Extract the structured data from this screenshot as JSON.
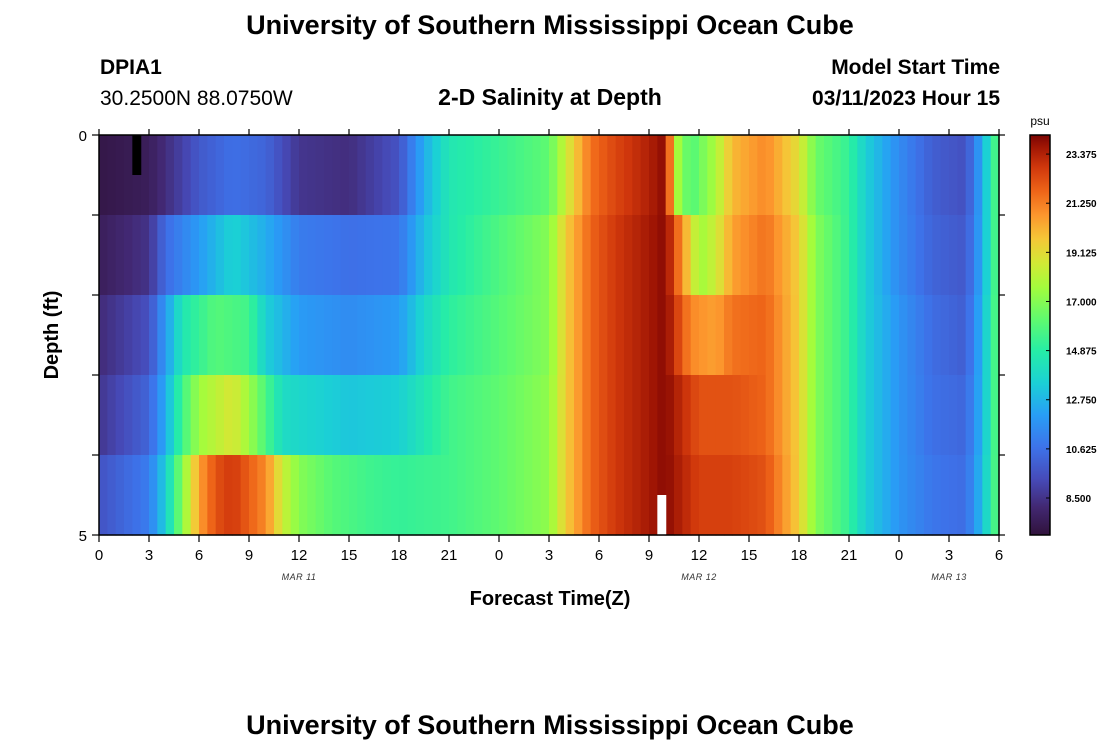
{
  "header": {
    "title": "University of Southern Mississippi Ocean Cube",
    "station_id": "DPIA1",
    "coordinates": "30.2500N  88.0750W",
    "plot_title": "2-D Salinity at Depth",
    "model_label": "Model Start Time",
    "model_time": "03/11/2023 Hour 15"
  },
  "footer": {
    "title": "University of Southern Mississippi Ocean Cube"
  },
  "chart_data": {
    "type": "heatmap",
    "title": "2-D Salinity at Depth",
    "xlabel": "Forecast Time(Z)",
    "ylabel": "Depth (ft)",
    "x_hours": [
      0,
      54
    ],
    "x_tick_labels": [
      "0",
      "3",
      "6",
      "9",
      "12",
      "15",
      "18",
      "21",
      "0",
      "3",
      "6",
      "9",
      "12",
      "15",
      "18",
      "21",
      "0",
      "3",
      "6"
    ],
    "date_labels": [
      {
        "label": "MAR 11",
        "hour": 12
      },
      {
        "label": "MAR 12",
        "hour": 36
      },
      {
        "label": "MAR 13",
        "hour": 51
      }
    ],
    "y_range": [
      0,
      5
    ],
    "y_tick_labels": [
      "0",
      "5"
    ],
    "depth_layers": 5,
    "colorbar": {
      "unit": "psu",
      "min": 6.9,
      "max": 24.2,
      "ticks": [
        8.5,
        10.625,
        12.75,
        14.875,
        17.0,
        19.125,
        21.25,
        23.375
      ],
      "tick_labels": [
        "8.500",
        "10.625",
        "12.750",
        "14.875",
        "17.000",
        "19.125",
        "21.250",
        "23.375"
      ]
    },
    "salinity_profiles": [
      [
        [
          0,
          7.2
        ],
        [
          3,
          7.6
        ],
        [
          5,
          9.0
        ],
        [
          6,
          9.8
        ],
        [
          8,
          10.6
        ],
        [
          10,
          10.2
        ],
        [
          12,
          8.6
        ],
        [
          15,
          8.3
        ],
        [
          18,
          9.6
        ],
        [
          19.5,
          12.5
        ],
        [
          21,
          14.5
        ],
        [
          24,
          15.3
        ],
        [
          27,
          16.2
        ],
        [
          28,
          18.5
        ],
        [
          29.5,
          21.5
        ],
        [
          31,
          22.5
        ],
        [
          33,
          23.4
        ],
        [
          34,
          24.0
        ],
        [
          34.6,
          18.0
        ],
        [
          35.5,
          15.8
        ],
        [
          37,
          17.8
        ],
        [
          38,
          20.0
        ],
        [
          40,
          21.0
        ],
        [
          42,
          19.0
        ],
        [
          43,
          16.5
        ],
        [
          45,
          15.2
        ],
        [
          46,
          13.5
        ],
        [
          48,
          11.5
        ],
        [
          50,
          10.0
        ],
        [
          52,
          9.5
        ],
        [
          53,
          12.5
        ],
        [
          54,
          16.5
        ]
      ],
      [
        [
          0,
          7.6
        ],
        [
          3,
          8.5
        ],
        [
          4,
          10.5
        ],
        [
          6,
          12.0
        ],
        [
          8,
          13.6
        ],
        [
          10,
          12.5
        ],
        [
          12,
          11.0
        ],
        [
          15,
          10.6
        ],
        [
          18,
          10.8
        ],
        [
          19.5,
          13.0
        ],
        [
          21,
          14.5
        ],
        [
          24,
          15.8
        ],
        [
          27,
          17.0
        ],
        [
          28,
          19.5
        ],
        [
          29.5,
          21.8
        ],
        [
          31,
          22.8
        ],
        [
          33,
          23.6
        ],
        [
          34,
          24.0
        ],
        [
          35.5,
          19.2
        ],
        [
          36,
          17.5
        ],
        [
          37,
          18.5
        ],
        [
          38,
          20.5
        ],
        [
          40,
          21.5
        ],
        [
          42,
          19.5
        ],
        [
          43,
          17.0
        ],
        [
          45,
          15.2
        ],
        [
          46,
          13.5
        ],
        [
          48,
          11.5
        ],
        [
          50,
          10.2
        ],
        [
          52,
          9.8
        ],
        [
          53,
          12.5
        ],
        [
          54,
          16.5
        ]
      ],
      [
        [
          0,
          8.2
        ],
        [
          3,
          9.5
        ],
        [
          4,
          12.0
        ],
        [
          5,
          14.5
        ],
        [
          7,
          16.0
        ],
        [
          9,
          15.5
        ],
        [
          10,
          13.5
        ],
        [
          12,
          12.0
        ],
        [
          15,
          11.5
        ],
        [
          18,
          12.0
        ],
        [
          19.5,
          13.8
        ],
        [
          21,
          15.0
        ],
        [
          24,
          16.0
        ],
        [
          27,
          17.0
        ],
        [
          28,
          19.5
        ],
        [
          29.5,
          21.8
        ],
        [
          31,
          22.8
        ],
        [
          33,
          23.6
        ],
        [
          34,
          24.0
        ],
        [
          35.5,
          21.0
        ],
        [
          37,
          20.5
        ],
        [
          38,
          21.5
        ],
        [
          40,
          21.8
        ],
        [
          42,
          19.5
        ],
        [
          43,
          17.0
        ],
        [
          45,
          15.2
        ],
        [
          46,
          13.5
        ],
        [
          48,
          11.8
        ],
        [
          50,
          10.5
        ],
        [
          52,
          10.0
        ],
        [
          53,
          12.8
        ],
        [
          54,
          16.5
        ]
      ],
      [
        [
          0,
          8.6
        ],
        [
          3,
          10.2
        ],
        [
          4,
          12.5
        ],
        [
          5,
          15.5
        ],
        [
          6,
          17.5
        ],
        [
          8,
          18.8
        ],
        [
          9,
          17.5
        ],
        [
          11,
          14.0
        ],
        [
          15,
          13.2
        ],
        [
          18,
          13.5
        ],
        [
          19.5,
          14.5
        ],
        [
          21,
          15.5
        ],
        [
          24,
          16.2
        ],
        [
          27,
          17.2
        ],
        [
          28,
          19.5
        ],
        [
          29.5,
          21.8
        ],
        [
          31,
          22.8
        ],
        [
          33,
          23.6
        ],
        [
          34,
          24.0
        ],
        [
          36,
          22.2
        ],
        [
          38,
          22.2
        ],
        [
          40,
          21.8
        ],
        [
          42,
          19.5
        ],
        [
          43,
          17.0
        ],
        [
          45,
          15.2
        ],
        [
          46,
          13.5
        ],
        [
          48,
          11.8
        ],
        [
          50,
          10.6
        ],
        [
          52,
          10.3
        ],
        [
          53,
          12.8
        ],
        [
          54,
          16.5
        ]
      ],
      [
        [
          0,
          9.6
        ],
        [
          3,
          11.0
        ],
        [
          4,
          13.5
        ],
        [
          5,
          17.0
        ],
        [
          6,
          20.5
        ],
        [
          7,
          22.2
        ],
        [
          8,
          22.8
        ],
        [
          10,
          21.0
        ],
        [
          11,
          18.5
        ],
        [
          12,
          17.0
        ],
        [
          14,
          16.0
        ],
        [
          16,
          15.5
        ],
        [
          18,
          15.2
        ],
        [
          21,
          15.5
        ],
        [
          24,
          16.2
        ],
        [
          27,
          17.2
        ],
        [
          28,
          19.5
        ],
        [
          29.5,
          21.8
        ],
        [
          31,
          22.8
        ],
        [
          33,
          23.6
        ],
        [
          34,
          24.0
        ],
        [
          36,
          22.6
        ],
        [
          38,
          22.6
        ],
        [
          40,
          22.2
        ],
        [
          42,
          19.5
        ],
        [
          43,
          17.0
        ],
        [
          45,
          15.2
        ],
        [
          46,
          13.5
        ],
        [
          48,
          11.8
        ],
        [
          50,
          10.8
        ],
        [
          52,
          10.5
        ],
        [
          53,
          13.0
        ],
        [
          54,
          16.5
        ]
      ]
    ],
    "missing_cells": [
      {
        "hour": 2,
        "layer": 0,
        "color": "#000000"
      },
      {
        "hour": 33.5,
        "layer": 4,
        "color": "#ffffff"
      }
    ]
  }
}
